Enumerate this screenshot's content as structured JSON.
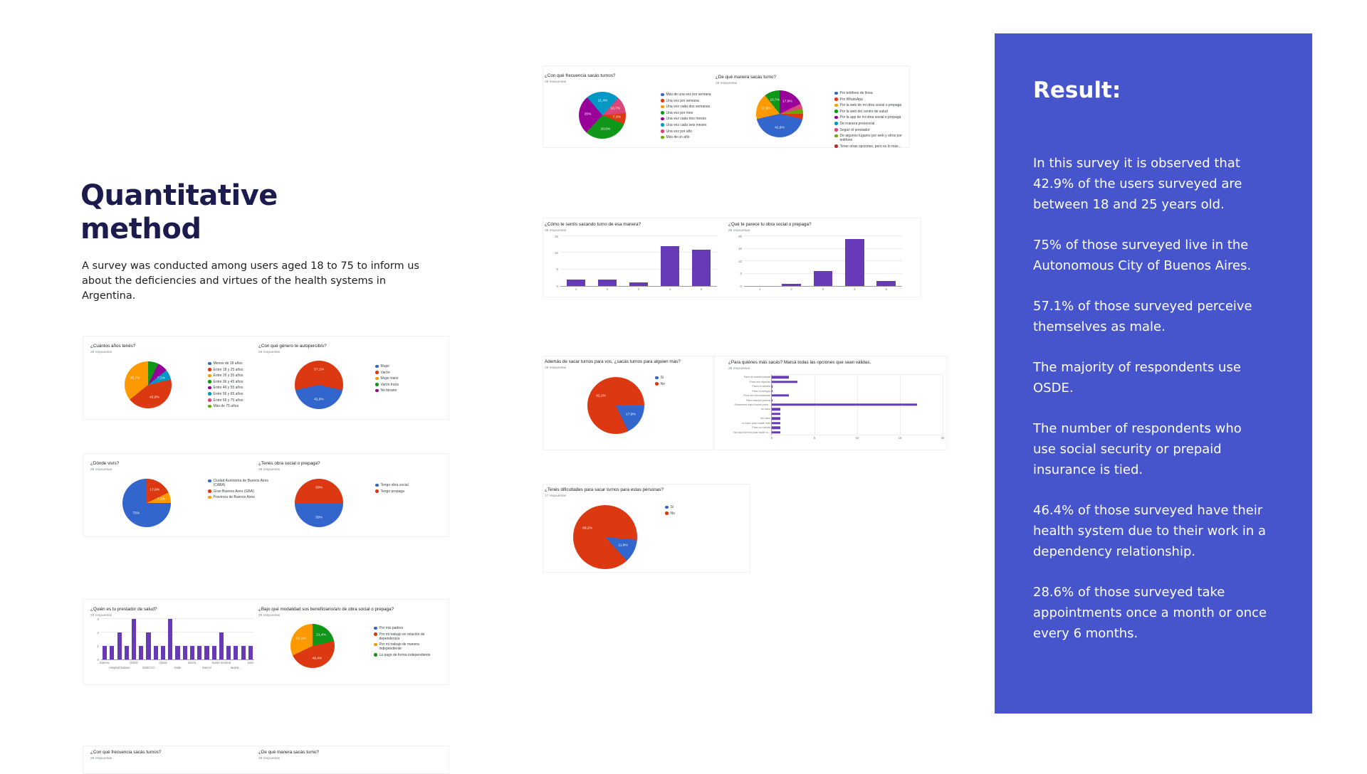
{
  "page": {
    "heading_line1": "Quantitative",
    "heading_line2": "method",
    "description": "A survey was conducted among users aged 18 to 75 to inform us about the deficiencies and virtues of the health systems in Argentina."
  },
  "colors": {
    "heading_navy": "#1c1b4e",
    "panel_blue": "#4655cb",
    "bar_purple": "#673ab7",
    "g_blue": "#3366cc",
    "g_red": "#dc3912",
    "g_orange": "#ff9900",
    "g_green": "#109618",
    "g_purple": "#990099",
    "g_cyan": "#0099c6",
    "g_pink": "#dd4477",
    "g_lightgreen": "#66aa00",
    "g_darkred": "#b82e2e"
  },
  "result_panel": {
    "title": "Result:",
    "background": "#4655cb",
    "paragraphs": [
      "In this survey it is observed that 42.9% of the users surveyed are between 18 and 25 years old.",
      "75% of those surveyed live in the Autonomous City of Buenos Aires.",
      "57.1% of those surveyed perceive themselves as male.",
      "The majority of respondents use OSDE.",
      "The number of respondents who use social security or prepaid insurance is tied.",
      "46.4% of those surveyed have their health system due to their work in a dependency relationship.",
      "28.6% of those surveyed take appointments once a month or once every 6 months."
    ]
  },
  "chart_data": [
    {
      "id": "edad",
      "type": "pie",
      "title": "¿Cuántos años tenés?",
      "responses": "28 respuestas",
      "pie": {
        "from": 0,
        "slices": [
          {
            "label": "Entre 36 y 45 años",
            "color": "#109618",
            "pct": 7.1,
            "show": ""
          },
          {
            "label": "Entre 46 y 55 años",
            "color": "#990099",
            "pct": 7.1,
            "show": ""
          },
          {
            "label": "Entre 56 y 65 años",
            "color": "#0099c6",
            "pct": 7.1,
            "show": "7,1%"
          },
          {
            "label": "Entre 18 y 25 años",
            "color": "#dc3912",
            "pct": 42.9,
            "show": "42,9%"
          },
          {
            "label": "Entre 26 y 35 años",
            "color": "#ff9900",
            "pct": 35.7,
            "show": "35,7%"
          }
        ]
      },
      "legend": [
        {
          "label": "Menos de 18 años",
          "color": "#3366cc"
        },
        {
          "label": "Entre 18 y 25 años",
          "color": "#dc3912"
        },
        {
          "label": "Entre 26 y 35 años",
          "color": "#ff9900"
        },
        {
          "label": "Entre 36 y 45 años",
          "color": "#109618"
        },
        {
          "label": "Entre 46 y 55 años",
          "color": "#990099"
        },
        {
          "label": "Entre 56 y 65 años",
          "color": "#0099c6"
        },
        {
          "label": "Entre 66 y 75 años",
          "color": "#dd4477"
        },
        {
          "label": "Más de 75 años",
          "color": "#66aa00"
        }
      ]
    },
    {
      "id": "genero",
      "type": "pie",
      "title": "¿Con qué género te autopercibís?",
      "responses": "28 respuestas",
      "pie": {
        "from": 103,
        "slices": [
          {
            "label": "Mujer",
            "color": "#3366cc",
            "pct": 42.9,
            "show": "42,9%"
          },
          {
            "label": "Varón",
            "color": "#dc3912",
            "pct": 57.1,
            "show": "57,1%"
          }
        ]
      },
      "legend": [
        {
          "label": "Mujer",
          "color": "#3366cc"
        },
        {
          "label": "Varón",
          "color": "#dc3912"
        },
        {
          "label": "Mujer trans",
          "color": "#ff9900"
        },
        {
          "label": "Varón trans",
          "color": "#109618"
        },
        {
          "label": "No binario",
          "color": "#990099"
        }
      ]
    },
    {
      "id": "donde",
      "type": "pie",
      "title": "¿Dónde vivís?",
      "responses": "28 respuestas",
      "pie": {
        "from": 0,
        "slices": [
          {
            "label": "Gran Buenos Aires (GBA)",
            "color": "#dc3912",
            "pct": 17.9,
            "show": "17,9%"
          },
          {
            "label": "Provincia de Buenos Aires",
            "color": "#ff9900",
            "pct": 7.1,
            "show": "7,1%"
          },
          {
            "label": "Ciudad Autónoma de Buenos Aires (CABA)",
            "color": "#3366cc",
            "pct": 75.0,
            "show": "75%"
          }
        ]
      },
      "legend": [
        {
          "label": "Ciudad Autónoma de Buenos Aires (CABA)",
          "color": "#3366cc"
        },
        {
          "label": "Gran Buenos Aires (GBA)",
          "color": "#dc3912"
        },
        {
          "label": "Provincia de Buenos Aires",
          "color": "#ff9900"
        }
      ]
    },
    {
      "id": "obra",
      "type": "pie",
      "title": "¿Tenés obra social o prepaga?",
      "responses": "28 respuestas",
      "pie": {
        "from": 90,
        "slices": [
          {
            "label": "Tengo obra social",
            "color": "#3366cc",
            "pct": 50,
            "show": "50%"
          },
          {
            "label": "Tengo prepaga",
            "color": "#dc3912",
            "pct": 50,
            "show": "50%"
          }
        ]
      },
      "legend": [
        {
          "label": "Tengo obra social",
          "color": "#3366cc"
        },
        {
          "label": "Tengo prepaga",
          "color": "#dc3912"
        }
      ]
    },
    {
      "id": "prestador",
      "type": "vbar",
      "title": "¿Quién es tu prestador de salud?",
      "responses": "28 respuestas",
      "vbar": {
        "color": "#673ab7",
        "values": [
          1,
          1,
          2,
          1,
          3,
          1,
          2,
          1,
          1,
          3,
          1,
          1,
          1,
          1,
          1,
          1,
          2,
          1,
          1,
          1,
          1
        ],
        "ymax": 3,
        "yticks": [
          0,
          1,
          2,
          3
        ],
        "xlabels": [
          [
            0,
            "Galeno,"
          ],
          [
            4,
            "OSDE"
          ],
          [
            8,
            "Obras"
          ],
          [
            12,
            "Omint,"
          ],
          [
            16,
            "Swiss medical"
          ],
          [
            20,
            "varis"
          ]
        ],
        "xlabels2": [
          [
            2,
            "Hospital Italiano"
          ],
          [
            6,
            "OSECAC"
          ],
          [
            10,
            "Osde"
          ],
          [
            14,
            "Sancor"
          ],
          [
            18,
            "tarjeta..."
          ]
        ]
      }
    },
    {
      "id": "modalidad",
      "type": "pie",
      "title": "¿Bajo qué modalidad sos beneficiario/a/o de obra social o prepaga?",
      "responses": "28 respuestas",
      "pie": {
        "from": 0,
        "slices": [
          {
            "label": "La pago de forma independiente",
            "color": "#109618",
            "pct": 21.4,
            "show": "21,4%"
          },
          {
            "label": "Por mi trabajo en relación de dependencia",
            "color": "#dc3912",
            "pct": 46.4,
            "show": "46,4%"
          },
          {
            "label": "Por mi trabajo de manera independiente",
            "color": "#ff9900",
            "pct": 32.1,
            "show": "32,1%"
          }
        ]
      },
      "legend": [
        {
          "label": "Por mis padres",
          "color": "#3366cc"
        },
        {
          "label": "Por mi trabajo en relación de dependencia",
          "color": "#dc3912"
        },
        {
          "label": "Por mi trabajo de manera independiente",
          "color": "#ff9900"
        },
        {
          "label": "La pago de forma independiente",
          "color": "#109618"
        }
      ]
    },
    {
      "id": "frecuencia",
      "type": "pie",
      "title": "¿Con qué frecuencia sacás turnos?",
      "responses": "28 respuestas",
      "pie": {
        "from": -40,
        "slices": [
          {
            "label": "Una vez cada seis meses",
            "color": "#0099c6",
            "pct": 21.4,
            "show": "21,4%"
          },
          {
            "label": "Una vez por año",
            "color": "#dd4477",
            "pct": 10.7,
            "show": "10,7%"
          },
          {
            "label": "Una vez por semana",
            "color": "#dc3912",
            "pct": 7.1,
            "show": "7,1%"
          },
          {
            "label": "Una vez por mes",
            "color": "#109618",
            "pct": 28.6,
            "show": "28,6%"
          },
          {
            "label": "Una vez cada tres meses",
            "color": "#990099",
            "pct": 25.0,
            "show": "25%"
          }
        ]
      },
      "legend": [
        {
          "label": "Más de una vez por semana",
          "color": "#3366cc"
        },
        {
          "label": "Una vez por semana",
          "color": "#dc3912"
        },
        {
          "label": "Una vez cada dos semanas",
          "color": "#ff9900"
        },
        {
          "label": "Una vez por mes",
          "color": "#109618"
        },
        {
          "label": "Una vez cada tres meses",
          "color": "#990099"
        },
        {
          "label": "Una vez cada seis meses",
          "color": "#0099c6"
        },
        {
          "label": "Una vez por año",
          "color": "#dd4477"
        },
        {
          "label": "Más de un año",
          "color": "#66aa00"
        }
      ]
    },
    {
      "id": "manera",
      "type": "pie",
      "title": "¿De qué manera sacás turno?",
      "responses": "28 respuestas",
      "pie": {
        "from": 0,
        "slices": [
          {
            "label": "Por la app de mi obra social o prepaga",
            "color": "#990099",
            "pct": 17.9,
            "show": "17,9%"
          },
          {
            "label": "Según el prestador",
            "color": "#dd4477",
            "pct": 3.6,
            "show": ""
          },
          {
            "label": "De algunos lugares por web y otros por teléfono",
            "color": "#66aa00",
            "pct": 3.6,
            "show": ""
          },
          {
            "label": "Por WhatsApp",
            "color": "#dc3912",
            "pct": 3.6,
            "show": ""
          },
          {
            "label": "Por teléfono de línea",
            "color": "#3366cc",
            "pct": 42.9,
            "show": "42,9%"
          },
          {
            "label": "Por la web de mi obra social o prepaga",
            "color": "#ff9900",
            "pct": 17.9,
            "show": "17,9%"
          },
          {
            "label": "Por la web del centro de salud",
            "color": "#109618",
            "pct": 10.7,
            "show": "10,7%"
          }
        ]
      },
      "legend": [
        {
          "label": "Por teléfono de línea",
          "color": "#3366cc"
        },
        {
          "label": "Por WhatsApp",
          "color": "#dc3912"
        },
        {
          "label": "Por la web de mi obra social o prepaga",
          "color": "#ff9900"
        },
        {
          "label": "Por la web del centro de salud",
          "color": "#109618"
        },
        {
          "label": "Por la app de mi obra social o prepaga",
          "color": "#990099"
        },
        {
          "label": "De manera presencial",
          "color": "#0099c6"
        },
        {
          "label": "Según el prestador",
          "color": "#dd4477"
        },
        {
          "label": "De algunos lugares por web y otros por teléfono",
          "color": "#66aa00"
        },
        {
          "label": "Tener otras opciones, pero es lo más...",
          "color": "#b82e2e"
        }
      ]
    },
    {
      "id": "comotesentis",
      "type": "vbar",
      "title": "¿Cómo te sentís sacando turno de esa manera?",
      "responses": "28 respuestas",
      "vbar": {
        "color": "#673ab7",
        "values": [
          2,
          2,
          1,
          12,
          11
        ],
        "ymax": 15,
        "yticks": [
          0,
          5,
          10,
          15
        ],
        "xlabels": [
          [
            0,
            "1"
          ],
          [
            1,
            "2"
          ],
          [
            2,
            "3"
          ],
          [
            3,
            "4"
          ],
          [
            4,
            "5"
          ]
        ],
        "xlabels2": []
      }
    },
    {
      "id": "queteparece",
      "type": "vbar",
      "title": "¿Qué te parece tu obra social o prepaga?",
      "responses": "28 respuestas",
      "vbar": {
        "color": "#673ab7",
        "values": [
          0,
          1,
          6,
          19,
          2
        ],
        "ymax": 20,
        "yticks": [
          0,
          5,
          10,
          15,
          20
        ],
        "xlabels": [
          [
            0,
            "1"
          ],
          [
            1,
            "2"
          ],
          [
            2,
            "3"
          ],
          [
            3,
            "4"
          ],
          [
            4,
            "5"
          ]
        ],
        "xlabels2": []
      }
    },
    {
      "id": "ademas",
      "type": "pie",
      "title": "Además de sacar turnos para vos, ¿sacás turnos para alguien más?",
      "responses": "28 respuestas",
      "pie": {
        "from": 90,
        "slices": [
          {
            "label": "Sí",
            "color": "#3366cc",
            "pct": 17.9,
            "show": "17,9%"
          },
          {
            "label": "No",
            "color": "#dc3912",
            "pct": 82.1,
            "show": "82,1%"
          }
        ]
      },
      "legend": [
        {
          "label": "Sí",
          "color": "#3366cc"
        },
        {
          "label": "No",
          "color": "#dc3912"
        }
      ]
    },
    {
      "id": "paraquienes",
      "type": "hbar",
      "title": "¿Para quiénes más sacás? Marcá todas las opciones que sean válidas.",
      "responses": "28 respuestas",
      "hbar": {
        "color": "#673ab7",
        "rows": [
          {
            "label": "Para mi marido/pareja",
            "value": 2
          },
          {
            "label": "Para mis hijos/as",
            "value": 3
          },
          {
            "label": "Para mi abuela",
            "value": 0
          },
          {
            "label": "Para mi suegra",
            "value": 0
          },
          {
            "label": "Para mis hermanos/as",
            "value": 2
          },
          {
            "label": "Para relación pasiva",
            "value": 0
          },
          {
            "label": "Solamente saco turnos para...",
            "value": 17
          },
          {
            "label": "no saco",
            "value": 1
          },
          {
            "label": "-",
            "value": 1
          },
          {
            "label": "No saco",
            "value": 1
          },
          {
            "label": "no saco para nadie más",
            "value": 1
          },
          {
            "label": "Para mi marido",
            "value": 1
          },
          {
            "label": "No saco turnos para nadie m...",
            "value": 1
          }
        ],
        "xmax": 20,
        "xticks": [
          0,
          5,
          10,
          15,
          20
        ]
      }
    },
    {
      "id": "dificultades",
      "type": "pie",
      "title": "¿Tenés dificultades para sacar turnos para estas personas?",
      "responses": "17 respuestas",
      "pie": {
        "from": 95,
        "slices": [
          {
            "label": "Sí",
            "color": "#3366cc",
            "pct": 11.8,
            "show": "11,8%"
          },
          {
            "label": "No",
            "color": "#dc3912",
            "pct": 88.2,
            "show": "88,2%"
          }
        ]
      },
      "legend": [
        {
          "label": "Sí",
          "color": "#3366cc"
        },
        {
          "label": "No",
          "color": "#dc3912"
        }
      ]
    },
    {
      "id": "frecuencia2",
      "type": "title",
      "title": "¿Con qué frecuencia sacás turnos?",
      "responses": "28 respuestas"
    },
    {
      "id": "manera2",
      "type": "title",
      "title": "¿De qué manera sacás turno?",
      "responses": "28 respuestas"
    }
  ]
}
